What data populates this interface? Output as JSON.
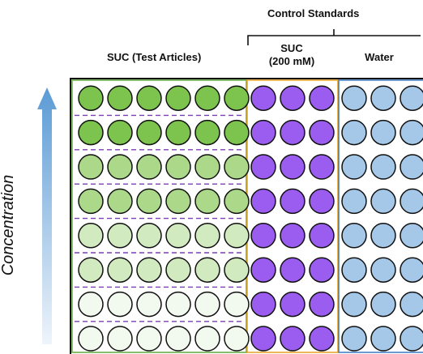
{
  "headers": {
    "control_standards": "Control Standards",
    "suc_test_articles": "SUC (Test Articles)",
    "suc_control_line1": "SUC",
    "suc_control_line2": "(200 mM)",
    "water": "Water"
  },
  "axis_label": "Concentration",
  "grid": {
    "rows": 8,
    "test_columns": 6,
    "suc_columns": 3,
    "water_columns": 3
  },
  "colors": {
    "test_article_row_fills": [
      "#7dc44e",
      "#7dc44e",
      "#acd88a",
      "#acd88a",
      "#d2eac0",
      "#d2eac0",
      "#f2f9ee",
      "#f2f9ee"
    ],
    "suc_fill": "#9b5cf0",
    "water_fill": "#a5c8e8",
    "plate_border": "#111111",
    "test_region_border": "#5fa83a",
    "suc_region_border": "#e8a020",
    "water_region_border": "#3b78c2",
    "divider_dash": "#7b3fb5",
    "arrow_top": "#5b9bd5",
    "arrow_bottom": "#eef4fb"
  }
}
